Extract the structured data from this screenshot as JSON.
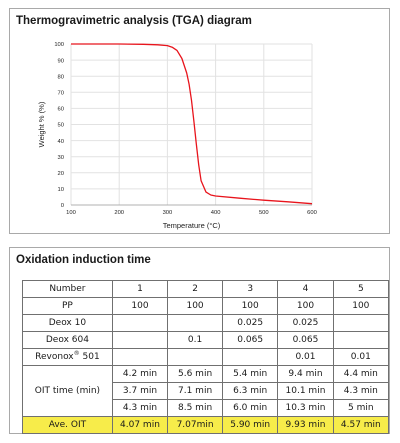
{
  "tga": {
    "title": "Thermogravimetric analysis (TGA) diagram",
    "chart_data": {
      "type": "line",
      "title": "Thermogravimetric analysis (TGA) diagram",
      "xlabel": "Temperature (°C)",
      "ylabel": "Weight % (%)",
      "xlim": [
        100,
        600
      ],
      "ylim": [
        0,
        100
      ],
      "x_ticks": [
        "100",
        "200",
        "300",
        "400",
        "500",
        "600"
      ],
      "y_ticks": [
        "0",
        "10",
        "20",
        "30",
        "40",
        "50",
        "60",
        "70",
        "80",
        "90",
        "100"
      ],
      "grid": true,
      "line_color": "#e8141c",
      "series": [
        {
          "x": [
            100,
            150,
            200,
            250,
            280,
            300,
            310,
            320,
            330,
            340,
            345,
            350,
            355,
            360,
            365,
            370,
            380,
            390,
            400,
            450,
            500,
            550,
            600
          ],
          "y": [
            100,
            100,
            100,
            99.8,
            99.5,
            99,
            98,
            96,
            91,
            82,
            75,
            65,
            52,
            38,
            25,
            15,
            8,
            6.2,
            5.6,
            4.2,
            3,
            2,
            0.8
          ]
        }
      ]
    }
  },
  "oit": {
    "title": "Oxidation induction time",
    "header": [
      "Number",
      "1",
      "2",
      "3",
      "4",
      "5"
    ],
    "rows": [
      [
        "PP",
        "100",
        "100",
        "100",
        "100",
        "100"
      ],
      [
        "Deox 10",
        "",
        "",
        "0.025",
        "0.025",
        ""
      ],
      [
        "Deox 604",
        "",
        "0.1",
        "0.065",
        "0.065",
        ""
      ],
      [
        "",
        "",
        "",
        "",
        "0.01",
        "0.01"
      ]
    ],
    "revonox": {
      "name": "Revonox",
      "sup": "®",
      "num": " 501"
    },
    "oit_label": "OIT time (min)",
    "oit_rows": [
      [
        "4.2 min",
        "5.6 min",
        "5.4 min",
        "9.4 min",
        "4.4 min"
      ],
      [
        "3.7 min",
        "7.1 min",
        "6.3 min",
        "10.1 min",
        "4.3 min"
      ],
      [
        "4.3 min",
        "8.5 min",
        "6.0 min",
        "10.3 min",
        "5 min"
      ]
    ],
    "avg": [
      "Ave. OIT",
      "4.07 min",
      "7.07min",
      "5.90 min",
      "9.93 min",
      "4.57 min"
    ],
    "avg_color": "#f7ec4a"
  }
}
